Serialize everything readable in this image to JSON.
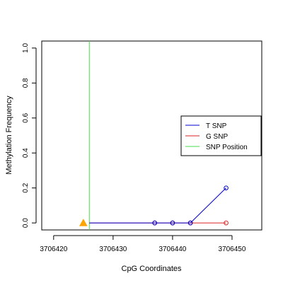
{
  "chart_data": {
    "type": "line",
    "xlabel": "CpG Coordinates",
    "ylabel": "Methylation Frequency",
    "xlim": [
      3706418,
      3706455
    ],
    "ylim": [
      -0.04,
      1.04
    ],
    "x_ticks": [
      3706420,
      3706430,
      3706440,
      3706450
    ],
    "x_tick_labels": [
      "3706420",
      "3706430",
      "3706440",
      "3706450"
    ],
    "y_ticks": [
      0.0,
      0.2,
      0.4,
      0.6,
      0.8,
      1.0
    ],
    "y_tick_labels": [
      "0.0",
      "0.2",
      "0.4",
      "0.6",
      "0.8",
      "1.0"
    ],
    "series": [
      {
        "name": "T SNP",
        "color": "#0000cc",
        "x": [
          3706426,
          3706437,
          3706440,
          3706443,
          3706449
        ],
        "y": [
          0.0,
          0.0,
          0.0,
          0.0,
          0.2
        ],
        "points_x": [
          3706437,
          3706440,
          3706443,
          3706449
        ],
        "points_y": [
          0.0,
          0.0,
          0.0,
          0.2
        ]
      },
      {
        "name": "G SNP",
        "color": "#dd2222",
        "x": [
          3706426,
          3706437,
          3706440,
          3706443,
          3706449
        ],
        "y": [
          0.0,
          0.0,
          0.0,
          0.0,
          0.0
        ],
        "points_x": [
          3706437,
          3706440,
          3706443,
          3706449
        ],
        "points_y": [
          0.0,
          0.0,
          0.0,
          0.0
        ]
      }
    ],
    "snp_position": {
      "name": "SNP Position",
      "x": 3706426,
      "color": "#44dd44"
    },
    "marker": {
      "x": 3706425,
      "y": 0.0,
      "shape": "triangle",
      "color": "#ffa500"
    },
    "legend": {
      "position": "right",
      "entries": [
        {
          "label": "T SNP",
          "color": "#0000cc"
        },
        {
          "label": "G SNP",
          "color": "#dd2222"
        },
        {
          "label": "SNP Position",
          "color": "#44dd44"
        }
      ]
    },
    "grid": false
  }
}
